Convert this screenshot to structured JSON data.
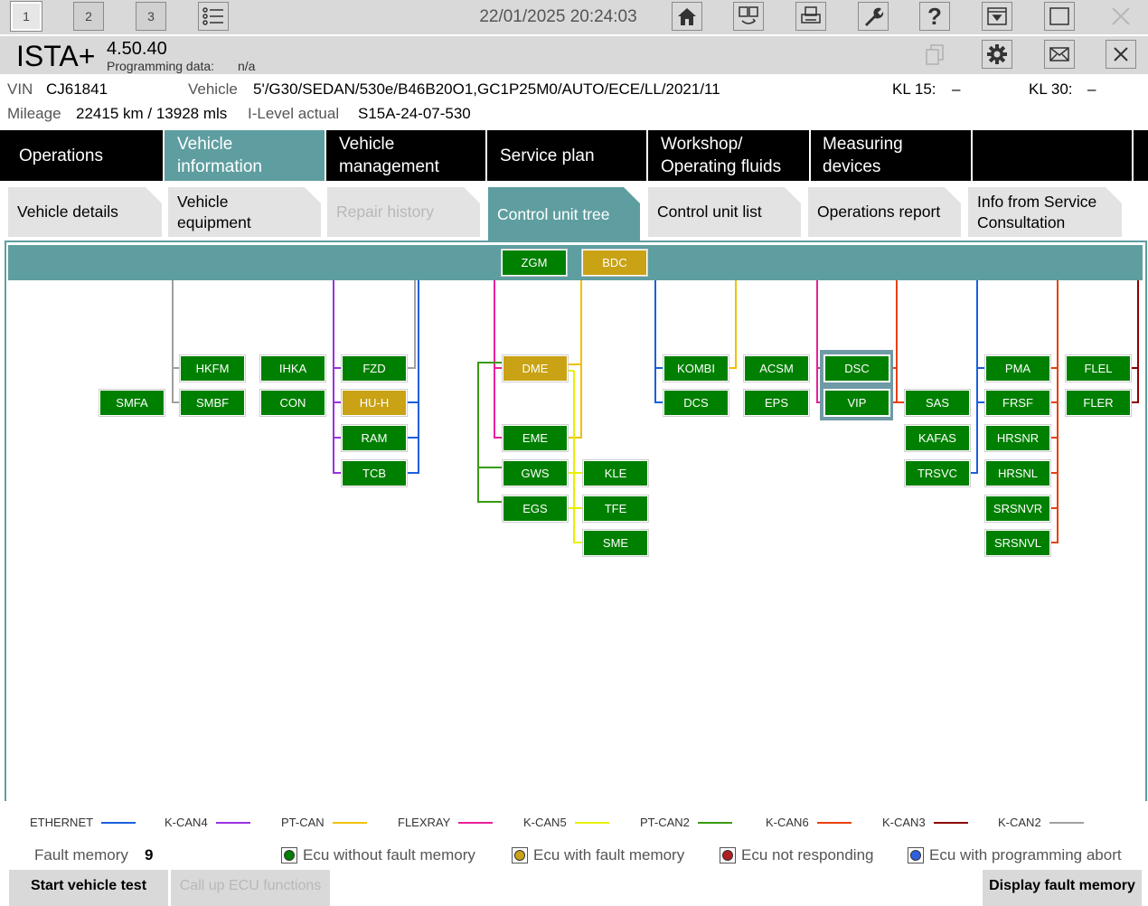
{
  "toolbar": {
    "sessions": [
      "1",
      "2",
      "3"
    ],
    "datetime": "22/01/2025 20:24:03",
    "icons": [
      "list-icon",
      "home-icon",
      "translate-icon",
      "print-icon",
      "wrench-icon",
      "help-icon",
      "minimize-icon",
      "window-icon",
      "close-icon"
    ]
  },
  "titlebar": {
    "app_name": "ISTA+",
    "version": "4.50.40",
    "programming_label": "Programming data:",
    "programming_value": "n/a"
  },
  "vehicle": {
    "vin_label": "VIN",
    "vin": "CJ61841",
    "vehicle_label": "Vehicle",
    "vehicle": "5'/G30/SEDAN/530e/B46B20O1,GC1P25M0/AUTO/ECE/LL/2021/11",
    "kl15_label": "KL 15:",
    "kl15": "–",
    "kl30_label": "KL 30:",
    "kl30": "–",
    "mileage_label": "Mileage",
    "mileage": "22415 km / 13928 mls",
    "ilevel_label": "I-Level actual",
    "ilevel": "S15A-24-07-530"
  },
  "mainnav": {
    "operations": "Operations",
    "vehicle_info": "Vehicle information",
    "vehicle_mgmt": "Vehicle management",
    "service_plan": "Service plan",
    "workshop": "Workshop/ Operating fluids",
    "measuring": "Measuring devices"
  },
  "subnav": {
    "details": "Vehicle details",
    "equipment": "Vehicle equipment",
    "repair": "Repair history",
    "tree": "Control unit tree",
    "list": "Control unit list",
    "report": "Operations report",
    "info": "Info from Service Consultation"
  },
  "gateway": {
    "zgm": "ZGM",
    "bdc": "BDC"
  },
  "ecus": {
    "hkfm": "HKFM",
    "smfa": "SMFA",
    "smbf": "SMBF",
    "ihka": "IHKA",
    "con": "CON",
    "fzd": "FZD",
    "huh": "HU-H",
    "ram": "RAM",
    "tcb": "TCB",
    "dme": "DME",
    "eme": "EME",
    "gws": "GWS",
    "egs": "EGS",
    "kle": "KLE",
    "tfe": "TFE",
    "sme": "SME",
    "kombi": "KOMBI",
    "dcs": "DCS",
    "acsm": "ACSM",
    "eps": "EPS",
    "dsc": "DSC",
    "vip": "VIP",
    "sas": "SAS",
    "kafas": "KAFAS",
    "trsvc": "TRSVC",
    "pma": "PMA",
    "frsf": "FRSF",
    "hrsnr": "HRSNR",
    "hrsnl": "HRSNL",
    "srsnvr": "SRSNVR",
    "srsnvl": "SRSNVL",
    "flel": "FLEL",
    "fler": "FLER"
  },
  "legend": [
    {
      "name": "ETHERNET",
      "color": "#1a5fdc"
    },
    {
      "name": "K-CAN4",
      "color": "#9b30e0"
    },
    {
      "name": "PT-CAN",
      "color": "#f0c000"
    },
    {
      "name": "FLEXRAY",
      "color": "#e8209a"
    },
    {
      "name": "K-CAN5",
      "color": "#e8f000"
    },
    {
      "name": "PT-CAN2",
      "color": "#3a9a10"
    },
    {
      "name": "K-CAN6",
      "color": "#e84010"
    },
    {
      "name": "K-CAN3",
      "color": "#8b0000"
    },
    {
      "name": "K-CAN2",
      "color": "#a0a0a0"
    }
  ],
  "status": {
    "fault_label": "Fault memory",
    "fault_count": "9",
    "without": "Ecu without fault memory",
    "with": "Ecu with fault memory",
    "not_responding": "Ecu not responding",
    "abort": "Ecu with programming abort",
    "colors": {
      "green": "#008000",
      "yellow": "#c9a215",
      "red": "#b02020",
      "blue": "#3060e0"
    }
  },
  "buttons": {
    "start": "Start vehicle test",
    "call": "Call up ECU functions",
    "display": "Display fault memory"
  }
}
